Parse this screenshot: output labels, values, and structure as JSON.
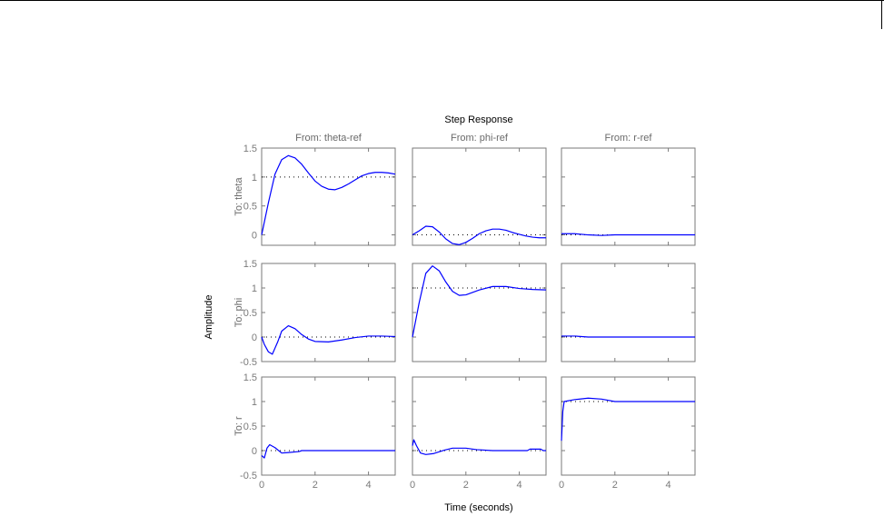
{
  "chart_data": {
    "type": "line",
    "title": "Step Response",
    "xlabel": "Time (seconds)",
    "ylabel": "Amplitude",
    "inputs": [
      "From: theta-ref",
      "From: phi-ref",
      "From: r-ref"
    ],
    "outputs": [
      "To: theta",
      "To: phi",
      "To: r"
    ],
    "xlim": [
      0,
      5
    ],
    "xticks": [
      0,
      2,
      4
    ],
    "rows": [
      {
        "ylim": [
          -0.18,
          1.5
        ],
        "yticks": [
          0,
          0.5,
          1,
          1.5
        ]
      },
      {
        "ylim": [
          -0.5,
          1.5
        ],
        "yticks": [
          -0.5,
          0,
          0.5,
          1,
          1.5
        ]
      },
      {
        "ylim": [
          -0.5,
          1.5
        ],
        "yticks": [
          -0.5,
          0,
          0.5,
          1,
          1.5
        ]
      }
    ],
    "line_color": "#0000ff",
    "steady_state": [
      [
        1,
        0,
        0
      ],
      [
        0,
        1,
        0
      ],
      [
        0,
        0,
        1
      ]
    ],
    "series": [
      [
        {
          "t": [
            0,
            0.25,
            0.5,
            0.75,
            1,
            1.25,
            1.5,
            1.75,
            2,
            2.25,
            2.5,
            2.75,
            3,
            3.25,
            3.5,
            3.75,
            4,
            4.25,
            4.5,
            4.75,
            5
          ],
          "y": [
            0,
            0.55,
            1.05,
            1.3,
            1.37,
            1.33,
            1.22,
            1.07,
            0.93,
            0.84,
            0.79,
            0.78,
            0.82,
            0.88,
            0.95,
            1.02,
            1.06,
            1.08,
            1.08,
            1.07,
            1.05
          ]
        },
        {
          "t": [
            0,
            0.25,
            0.5,
            0.75,
            1,
            1.25,
            1.5,
            1.75,
            2,
            2.25,
            2.5,
            2.75,
            3,
            3.25,
            3.5,
            3.75,
            4,
            4.25,
            4.5,
            4.75,
            5
          ],
          "y": [
            0,
            0.07,
            0.15,
            0.14,
            0.05,
            -0.07,
            -0.15,
            -0.17,
            -0.13,
            -0.06,
            0.02,
            0.07,
            0.1,
            0.1,
            0.08,
            0.04,
            0.01,
            -0.02,
            -0.04,
            -0.05,
            -0.05
          ]
        },
        {
          "t": [
            0,
            0.5,
            1,
            1.5,
            2,
            5
          ],
          "y": [
            0.02,
            0.02,
            0,
            -0.01,
            0,
            0
          ]
        }
      ],
      [
        {
          "t": [
            0,
            0.1,
            0.25,
            0.4,
            0.6,
            0.75,
            1,
            1.25,
            1.5,
            1.75,
            2,
            2.5,
            3,
            3.5,
            4,
            4.5,
            5
          ],
          "y": [
            0,
            -0.15,
            -0.3,
            -0.35,
            -0.1,
            0.12,
            0.23,
            0.17,
            0.05,
            -0.04,
            -0.09,
            -0.1,
            -0.06,
            -0.01,
            0.02,
            0.02,
            0.01
          ]
        },
        {
          "t": [
            0,
            0.25,
            0.5,
            0.75,
            1,
            1.25,
            1.5,
            1.75,
            2,
            2.5,
            3,
            3.5,
            4,
            4.5,
            5
          ],
          "y": [
            0,
            0.7,
            1.3,
            1.45,
            1.35,
            1.12,
            0.93,
            0.85,
            0.86,
            0.96,
            1.03,
            1.03,
            0.99,
            0.97,
            0.96
          ]
        },
        {
          "t": [
            0,
            0.5,
            1,
            1.5,
            5
          ],
          "y": [
            0.02,
            0.02,
            0,
            0,
            0
          ]
        }
      ],
      [
        {
          "t": [
            0,
            0.1,
            0.2,
            0.3,
            0.5,
            0.75,
            1,
            1.4,
            1.5,
            5
          ],
          "y": [
            -0.1,
            -0.15,
            0.05,
            0.12,
            0.06,
            -0.05,
            -0.04,
            -0.02,
            0,
            0
          ]
        },
        {
          "t": [
            0,
            0.05,
            0.15,
            0.3,
            0.5,
            0.8,
            1.2,
            1.5,
            2,
            2.4,
            3,
            4.3,
            4.4,
            4.8,
            4.9,
            5
          ],
          "y": [
            0.1,
            0.22,
            0.1,
            -0.05,
            -0.08,
            -0.06,
            0.01,
            0.05,
            0.05,
            0.02,
            0,
            0,
            0.03,
            0.03,
            0,
            0
          ]
        },
        {
          "t": [
            0,
            0.05,
            0.1,
            0.5,
            1,
            1.5,
            2,
            5
          ],
          "y": [
            0.2,
            0.8,
            1.0,
            1.04,
            1.07,
            1.05,
            1.0,
            1.0
          ]
        }
      ]
    ]
  }
}
